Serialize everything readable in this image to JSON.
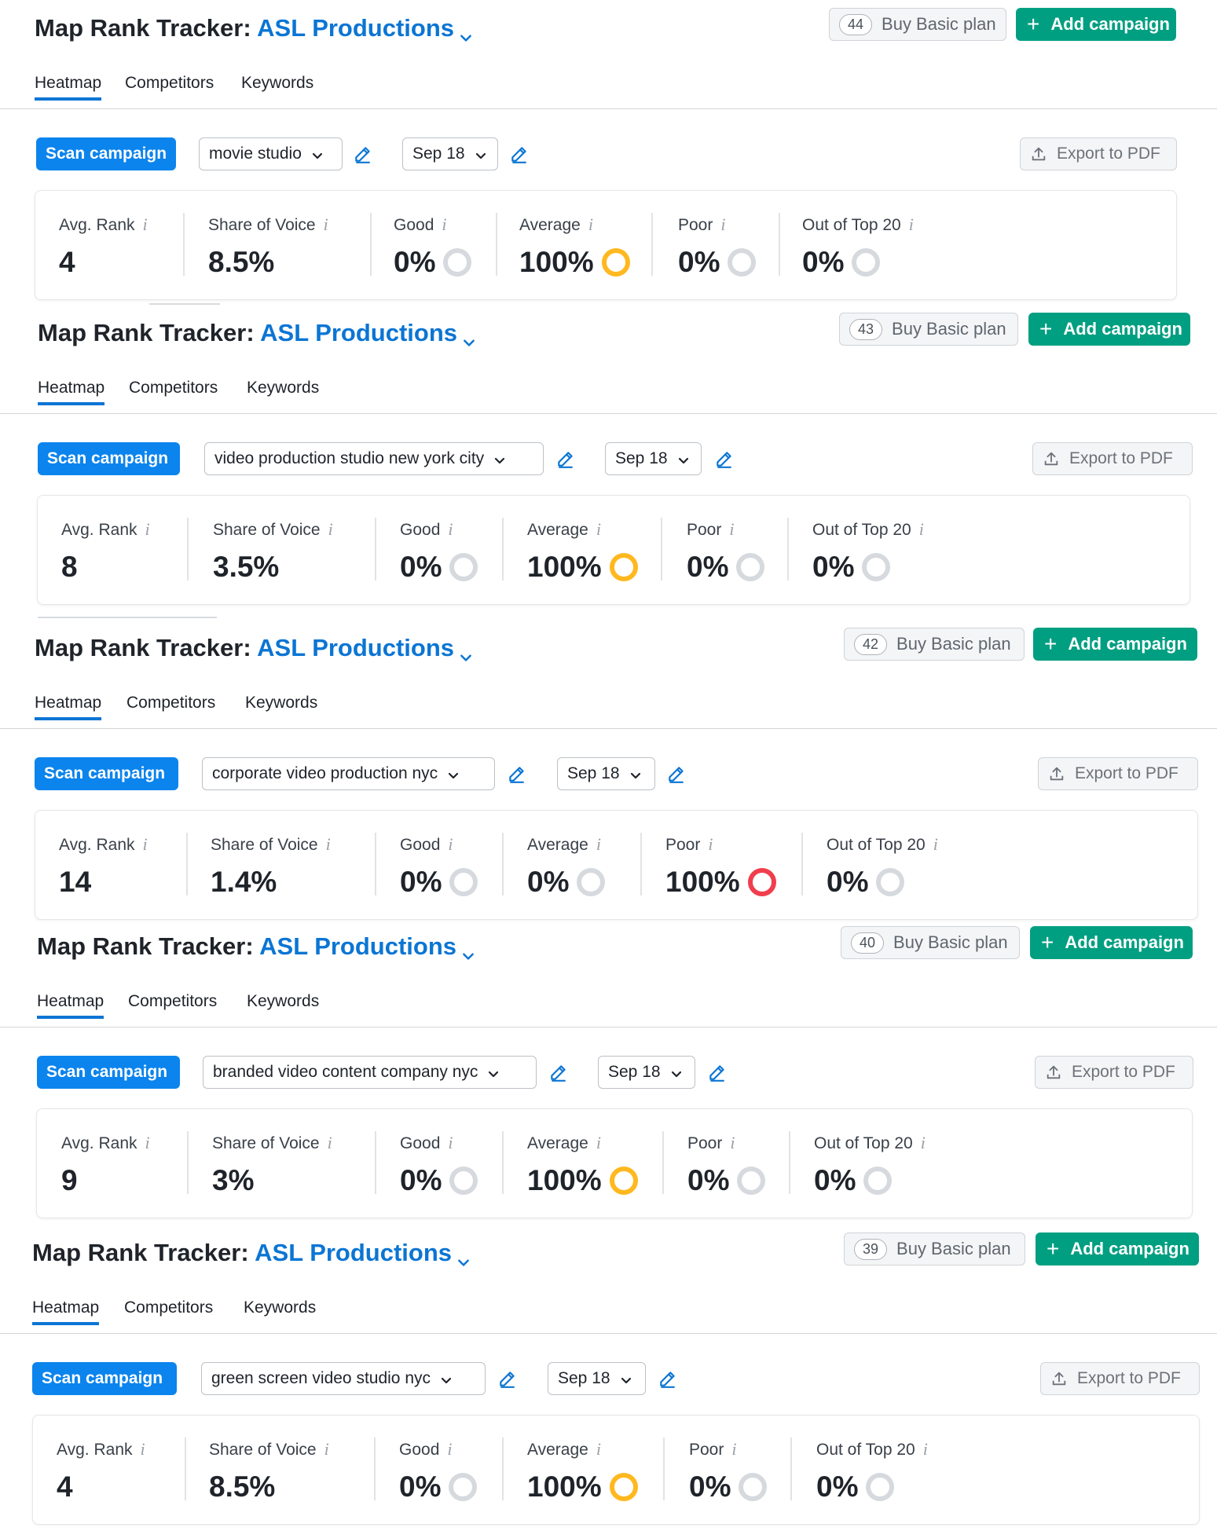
{
  "app_title": "Map Rank Tracker:",
  "project_name": "ASL Productions",
  "buy_label": "Buy Basic plan",
  "add_campaign_label": "Add campaign",
  "tabs": [
    "Heatmap",
    "Competitors",
    "Keywords"
  ],
  "scan_label": "Scan campaign",
  "export_label": "Export to PDF",
  "metric_labels": {
    "avg_rank": "Avg. Rank",
    "share_of_voice": "Share of Voice",
    "good": "Good",
    "average": "Average",
    "poor": "Poor",
    "out_of_top_20": "Out of Top 20"
  },
  "info_glyph": "i",
  "colors": {
    "accent_blue": "#0b75d4",
    "scan_blue": "#0b84ed",
    "add_green": "#009f81",
    "average_ring": "#ffb81f",
    "poor_ring": "#f03e4d",
    "empty_ring": "#d6d9dd"
  },
  "icons": [
    "chevron-down-icon",
    "pencil-icon",
    "upload-icon",
    "plus-icon",
    "info-icon",
    "status-ring-icon"
  ],
  "blocks": [
    {
      "credits": "44",
      "keyword": "movie studio",
      "date": "Sep 18",
      "avg_rank": "4",
      "share_of_voice": "8.5%",
      "good": "0%",
      "average": "100%",
      "poor": "0%",
      "out_of_top_20": "0%"
    },
    {
      "credits": "43",
      "keyword": "video production studio new york city",
      "date": "Sep 18",
      "avg_rank": "8",
      "share_of_voice": "3.5%",
      "good": "0%",
      "average": "100%",
      "poor": "0%",
      "out_of_top_20": "0%"
    },
    {
      "credits": "42",
      "keyword": "corporate video production nyc",
      "date": "Sep 18",
      "avg_rank": "14",
      "share_of_voice": "1.4%",
      "good": "0%",
      "average": "0%",
      "poor": "100%",
      "out_of_top_20": "0%"
    },
    {
      "credits": "40",
      "keyword": "branded video content company nyc",
      "date": "Sep 18",
      "avg_rank": "9",
      "share_of_voice": "3%",
      "good": "0%",
      "average": "100%",
      "poor": "0%",
      "out_of_top_20": "0%"
    },
    {
      "credits": "39",
      "keyword": "green screen video studio nyc",
      "date": "Sep 18",
      "avg_rank": "4",
      "share_of_voice": "8.5%",
      "good": "0%",
      "average": "100%",
      "poor": "0%",
      "out_of_top_20": "0%"
    }
  ]
}
